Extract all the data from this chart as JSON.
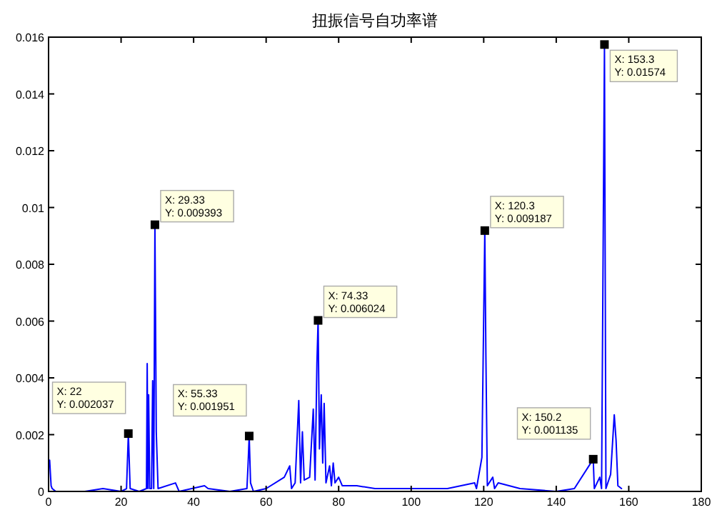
{
  "chart_data": {
    "type": "line",
    "title": "扭振信号自功率谱",
    "x": [
      0,
      0.3,
      0.7,
      1,
      2,
      10,
      15,
      20,
      21.5,
      22,
      22.5,
      25,
      27,
      27.2,
      27.4,
      27.6,
      27.9,
      28.4,
      28.7,
      29,
      29.33,
      29.7,
      30.2,
      35,
      36,
      43,
      44,
      50,
      54.7,
      55,
      55.33,
      55.7,
      56.5,
      60,
      65,
      66.5,
      67,
      68,
      69,
      69.5,
      70,
      70.5,
      72,
      73,
      73.5,
      74,
      74.33,
      74.7,
      75.2,
      75.6,
      76,
      76.5,
      77.5,
      78,
      78.5,
      79,
      80,
      81,
      85,
      90,
      100,
      110,
      117.5,
      118,
      119.5,
      120.3,
      120.6,
      121,
      122.5,
      123,
      124,
      127,
      130,
      140,
      145,
      150.2,
      150.5,
      152,
      152.5,
      153.3,
      153.7,
      155,
      156,
      156.5,
      157,
      158
    ],
    "series": [
      {
        "color": "#0000ff",
        "values": [
          0.0009,
          0.0011,
          0.0002,
          0.0001,
          0,
          0,
          0.0001,
          0,
          0.0001,
          0.002037,
          0.0001,
          0,
          0.0001,
          0.0045,
          0.0001,
          0.0034,
          0.0001,
          0.0001,
          0.0039,
          0.0001,
          0.009393,
          0.0021,
          0.0001,
          0.0003,
          0,
          0.0002,
          0.0001,
          0,
          0.0001,
          0.0009,
          0.001951,
          0.0003,
          0,
          0.0001,
          0.0005,
          0.0009,
          0.0001,
          0.0003,
          0.0032,
          0.0003,
          0.0021,
          0.0004,
          0.0005,
          0.0029,
          0.0004,
          0.0045,
          0.006024,
          0.0015,
          0.0034,
          0.001,
          0.0031,
          0.0003,
          0.0009,
          0.0002,
          0.001,
          0.0003,
          0.0005,
          0.0002,
          0.0002,
          0.0001,
          0.0001,
          0.0001,
          0.0003,
          0.0001,
          0.0012,
          0.009187,
          0.0048,
          0.0002,
          0.0005,
          0.0001,
          0.0003,
          0.0002,
          0.0001,
          0,
          0.0001,
          0.001135,
          0.0001,
          0.0005,
          0.0001,
          0.01574,
          0.0001,
          0.0006,
          0.0027,
          0.0018,
          0.0002,
          0.0001
        ]
      }
    ],
    "xlim": [
      0,
      180
    ],
    "xticks": [
      0,
      20,
      40,
      60,
      80,
      100,
      120,
      140,
      160,
      180
    ],
    "ylim": [
      0,
      0.016
    ],
    "yticks": [
      0,
      0.002,
      0.004,
      0.006,
      0.008,
      0.01,
      0.012,
      0.014,
      0.016
    ],
    "grid": false,
    "marker": "none",
    "line_style": "solid",
    "annotations": [
      {
        "text": "X: 22\nY: 0.002037",
        "x": 22,
        "y": 0.002037
      },
      {
        "text": "X: 29.33\nY: 0.009393",
        "x": 29.33,
        "y": 0.009393
      },
      {
        "text": "X: 55.33\nY: 0.001951",
        "x": 55.33,
        "y": 0.001951
      },
      {
        "text": "X: 74.33\nY: 0.006024",
        "x": 74.33,
        "y": 0.006024
      },
      {
        "text": "X: 120.3\nY: 0.009187",
        "x": 120.3,
        "y": 0.009187
      },
      {
        "text": "X: 150.2\nY: 0.001135",
        "x": 150.2,
        "y": 0.001135
      },
      {
        "text": "X: 153.3\nY: 0.01574",
        "x": 153.3,
        "y": 0.01574
      }
    ]
  }
}
